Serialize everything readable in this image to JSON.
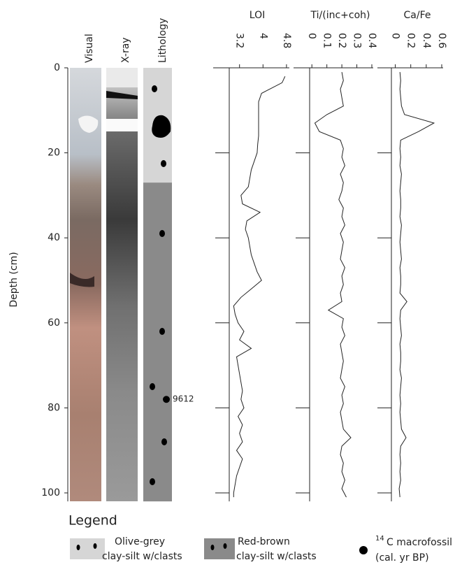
{
  "depth_axis": {
    "label": "Depth (cm)",
    "ylim": [
      0,
      102
    ],
    "yticks": [
      0,
      20,
      40,
      60,
      80,
      100
    ]
  },
  "core_columns": [
    "Visual",
    "X-ray",
    "Lithology"
  ],
  "lithology": [
    {
      "name_lines": [
        "Olive-grey",
        "clay-silt w/clasts"
      ],
      "color": "#d6d6d6",
      "top": 0,
      "bottom": 27
    },
    {
      "name_lines": [
        "Red-brown",
        "clay-silt w/clasts"
      ],
      "color": "#8a8a8a",
      "top": 27,
      "bottom": 102
    }
  ],
  "radiocarbon": {
    "depth": 78,
    "label": "9612",
    "legend_sup": "14",
    "legend_lines": [
      "C macrofossil",
      "(cal. yr BP)"
    ]
  },
  "legend_title": "Legend",
  "chart_data": [
    {
      "type": "line",
      "title": "LOI",
      "color": "#222",
      "xlim": [
        2.85,
        4.85
      ],
      "xticks": [
        3.2,
        4,
        4.8
      ],
      "depth": [
        2,
        3.5,
        6,
        8,
        10,
        12,
        14,
        16,
        18,
        20,
        22,
        24,
        26,
        28,
        30,
        32,
        34,
        36,
        38,
        40,
        42,
        44,
        46,
        48,
        50,
        52,
        54,
        56,
        58,
        60,
        62,
        64,
        66,
        68,
        70,
        72,
        74,
        76,
        78,
        80,
        82,
        84,
        86,
        88,
        90,
        92,
        94,
        96,
        98,
        100,
        101
      ],
      "values": [
        4.75,
        4.65,
        3.95,
        3.85,
        3.85,
        3.85,
        3.85,
        3.85,
        3.82,
        3.8,
        3.7,
        3.6,
        3.55,
        3.5,
        3.25,
        3.3,
        3.9,
        3.45,
        3.4,
        3.5,
        3.55,
        3.6,
        3.7,
        3.8,
        3.95,
        3.6,
        3.25,
        3.0,
        3.05,
        3.15,
        3.35,
        3.2,
        3.6,
        3.1,
        3.15,
        3.2,
        3.25,
        3.3,
        3.25,
        3.35,
        3.15,
        3.3,
        3.2,
        3.3,
        3.1,
        3.3,
        3.2,
        3.1,
        3.05,
        3.0,
        3.0
      ]
    },
    {
      "type": "line",
      "title": "Ti/(inc+coh)",
      "color": "#222",
      "xlim": [
        -0.015,
        0.4
      ],
      "xticks": [
        0,
        0.1,
        0.2,
        0.3,
        0.4
      ],
      "depth": [
        1,
        3,
        5,
        7,
        9,
        11,
        13,
        15,
        17,
        19,
        21,
        23,
        25,
        27,
        29,
        31,
        33,
        35,
        37,
        39,
        41,
        43,
        45,
        47,
        49,
        51,
        53,
        55,
        57,
        59,
        61,
        63,
        65,
        67,
        69,
        71,
        73,
        75,
        77,
        79,
        81,
        83,
        85,
        87,
        89,
        91,
        93,
        95,
        97,
        99,
        101
      ],
      "values": [
        0.2,
        0.21,
        0.19,
        0.2,
        0.21,
        0.1,
        0.02,
        0.05,
        0.19,
        0.21,
        0.2,
        0.22,
        0.19,
        0.21,
        0.2,
        0.18,
        0.21,
        0.2,
        0.22,
        0.19,
        0.21,
        0.2,
        0.19,
        0.22,
        0.2,
        0.21,
        0.19,
        0.2,
        0.11,
        0.21,
        0.2,
        0.22,
        0.19,
        0.2,
        0.21,
        0.2,
        0.19,
        0.22,
        0.2,
        0.21,
        0.19,
        0.2,
        0.21,
        0.26,
        0.2,
        0.19,
        0.21,
        0.2,
        0.22,
        0.2,
        0.23
      ]
    },
    {
      "type": "line",
      "title": "Ca/Fe",
      "color": "#222",
      "xlim": [
        -0.05,
        0.6
      ],
      "xticks": [
        0,
        0.2,
        0.4,
        0.6
      ],
      "depth": [
        1,
        3,
        5,
        7,
        9,
        11,
        13,
        15,
        17,
        19,
        21,
        23,
        25,
        27,
        29,
        31,
        33,
        35,
        37,
        39,
        41,
        43,
        45,
        47,
        49,
        51,
        53,
        55,
        57,
        59,
        61,
        63,
        65,
        67,
        69,
        71,
        73,
        75,
        77,
        79,
        81,
        83,
        85,
        87,
        89,
        91,
        93,
        95,
        97,
        99,
        101
      ],
      "values": [
        0.06,
        0.07,
        0.06,
        0.07,
        0.08,
        0.12,
        0.5,
        0.3,
        0.07,
        0.06,
        0.07,
        0.06,
        0.08,
        0.07,
        0.06,
        0.07,
        0.07,
        0.06,
        0.08,
        0.07,
        0.06,
        0.07,
        0.08,
        0.06,
        0.07,
        0.07,
        0.06,
        0.15,
        0.07,
        0.06,
        0.07,
        0.08,
        0.06,
        0.07,
        0.07,
        0.06,
        0.08,
        0.07,
        0.06,
        0.07,
        0.06,
        0.07,
        0.08,
        0.14,
        0.07,
        0.06,
        0.07,
        0.06,
        0.07,
        0.05,
        0.06
      ]
    }
  ]
}
